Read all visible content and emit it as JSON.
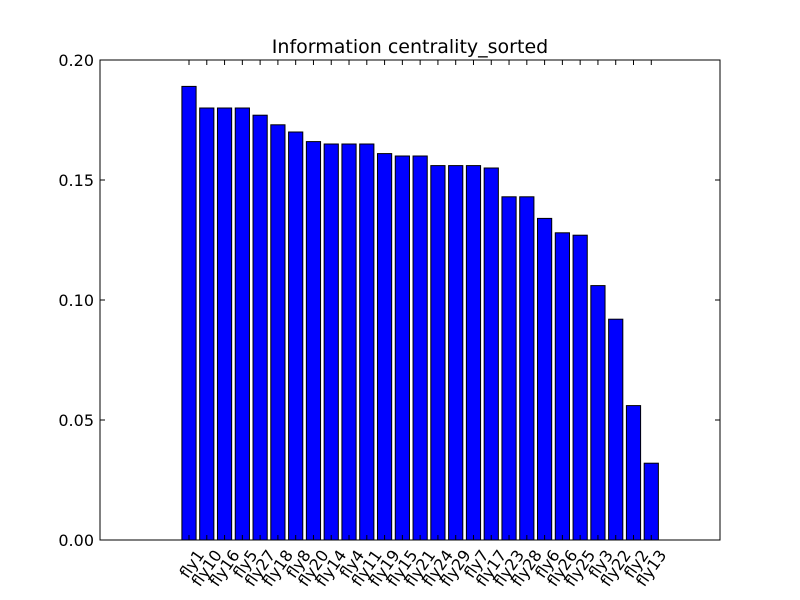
{
  "chart_data": {
    "type": "bar",
    "title": "Information centrality_sorted",
    "xlabel": "",
    "ylabel": "",
    "ylim": [
      0,
      0.2
    ],
    "yticks": [
      "0.00",
      "0.05",
      "0.10",
      "0.15",
      "0.20"
    ],
    "ytick_values": [
      0,
      0.05,
      0.1,
      0.15,
      0.2
    ],
    "grid": false,
    "bar_color": "#0000ff",
    "edge_color": "#000000",
    "categories": [
      "fly1",
      "fly10",
      "fly16",
      "fly5",
      "fly27",
      "fly18",
      "fly8",
      "fly20",
      "fly14",
      "fly4",
      "fly11",
      "fly19",
      "fly15",
      "fly21",
      "fly24",
      "fly29",
      "fly7",
      "fly17",
      "fly23",
      "fly28",
      "fly6",
      "fly26",
      "fly25",
      "fly3",
      "fly22",
      "fly2",
      "fly13"
    ],
    "values": [
      0.189,
      0.18,
      0.18,
      0.18,
      0.177,
      0.173,
      0.17,
      0.166,
      0.165,
      0.165,
      0.165,
      0.161,
      0.16,
      0.16,
      0.156,
      0.156,
      0.156,
      0.155,
      0.143,
      0.143,
      0.134,
      0.128,
      0.127,
      0.106,
      0.092,
      0.056,
      0.032
    ]
  }
}
